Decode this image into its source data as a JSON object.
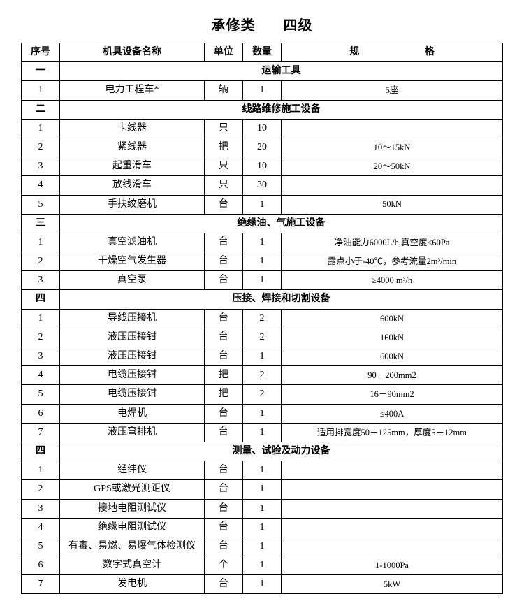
{
  "title_left": "承修类",
  "title_right": "四级",
  "columns": {
    "seq": "序号",
    "name": "机具设备名称",
    "unit": "单位",
    "qty": "数量",
    "spec_a": "规",
    "spec_b": "格"
  },
  "sections": [
    {
      "num": "一",
      "title": "运输工具",
      "rows": [
        {
          "seq": "1",
          "name": "电力工程车*",
          "unit": "辆",
          "qty": "1",
          "spec": "5座"
        }
      ]
    },
    {
      "num": "二",
      "title": "线路维修施工设备",
      "rows": [
        {
          "seq": "1",
          "name": "卡线器",
          "unit": "只",
          "qty": "10",
          "spec": ""
        },
        {
          "seq": "2",
          "name": "紧线器",
          "unit": "把",
          "qty": "20",
          "spec": "10～15kN"
        },
        {
          "seq": "3",
          "name": "起重滑车",
          "unit": "只",
          "qty": "10",
          "spec": "20～50kN"
        },
        {
          "seq": "4",
          "name": "放线滑车",
          "unit": "只",
          "qty": "30",
          "spec": ""
        },
        {
          "seq": "5",
          "name": "手扶绞磨机",
          "unit": "台",
          "qty": "1",
          "spec": "50kN"
        }
      ]
    },
    {
      "num": "三",
      "title": "绝缘油、气施工设备",
      "rows": [
        {
          "seq": "1",
          "name": "真空滤油机",
          "unit": "台",
          "qty": "1",
          "spec": "净油能力6000L/h,真空度≤60Pa"
        },
        {
          "seq": "2",
          "name": "干燥空气发生器",
          "unit": "台",
          "qty": "1",
          "spec": "露点小于-40℃，参考流量2m³/min"
        },
        {
          "seq": "3",
          "name": "真空泵",
          "unit": "台",
          "qty": "1",
          "spec": "≥4000 m³/h"
        }
      ]
    },
    {
      "num": "四",
      "title": "压接、焊接和切割设备",
      "rows": [
        {
          "seq": "1",
          "name": "导线压接机",
          "unit": "台",
          "qty": "2",
          "spec": "600kN"
        },
        {
          "seq": "2",
          "name": "液压压接钳",
          "unit": "台",
          "qty": "2",
          "spec": "160kN"
        },
        {
          "seq": "3",
          "name": "液压压接钳",
          "unit": "台",
          "qty": "1",
          "spec": "600kN"
        },
        {
          "seq": "4",
          "name": "电缆压接钳",
          "unit": "把",
          "qty": "2",
          "spec": "90－200mm2"
        },
        {
          "seq": "5",
          "name": "电缆压接钳",
          "unit": "把",
          "qty": "2",
          "spec": "16－90mm2"
        },
        {
          "seq": "6",
          "name": "电焊机",
          "unit": "台",
          "qty": "1",
          "spec": "≤400A"
        },
        {
          "seq": "7",
          "name": "液压弯排机",
          "unit": "台",
          "qty": "1",
          "spec": "适用排宽度50－125mm，厚度5－12mm"
        }
      ]
    },
    {
      "num": "四",
      "title": "测量、试验及动力设备",
      "rows": [
        {
          "seq": "1",
          "name": "经纬仪",
          "unit": "台",
          "qty": "1",
          "spec": ""
        },
        {
          "seq": "2",
          "name": "GPS或激光测距仪",
          "unit": "台",
          "qty": "1",
          "spec": ""
        },
        {
          "seq": "3",
          "name": "接地电阻测试仪",
          "unit": "台",
          "qty": "1",
          "spec": ""
        },
        {
          "seq": "4",
          "name": "绝缘电阻测试仪",
          "unit": "台",
          "qty": "1",
          "spec": ""
        },
        {
          "seq": "5",
          "name": "有毒、易燃、易爆气体检测仪",
          "unit": "台",
          "qty": "1",
          "spec": ""
        },
        {
          "seq": "6",
          "name": "数字式真空计",
          "unit": "个",
          "qty": "1",
          "spec": "1-1000Pa"
        },
        {
          "seq": "7",
          "name": "发电机",
          "unit": "台",
          "qty": "1",
          "spec": "5kW"
        }
      ]
    }
  ]
}
